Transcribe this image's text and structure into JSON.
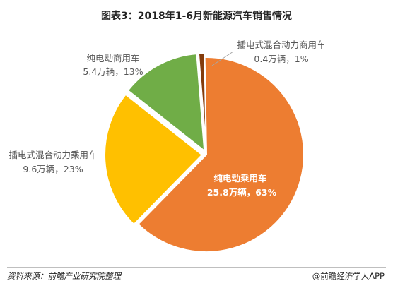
{
  "chart_data": {
    "type": "pie",
    "title": "图表3：2018年1-6月新能源汽车销售情况",
    "slices": [
      {
        "name": "纯电动乘用车",
        "value_label": "25.8万辆，63%",
        "value": 25.8,
        "percent": 63,
        "color": "#ED7D31"
      },
      {
        "name": "插电式混合动力乘用车",
        "value_label": "9.6万辆，23%",
        "value": 9.6,
        "percent": 23,
        "color": "#FFC000"
      },
      {
        "name": "纯电动商用车",
        "value_label": "5.4万辆，13%",
        "value": 5.4,
        "percent": 13,
        "color": "#70AD47"
      },
      {
        "name": "插电式混合动力商用车",
        "value_label": "0.4万辆，1%",
        "value": 0.4,
        "percent": 1,
        "color": "#843C0C"
      }
    ]
  },
  "footer": {
    "source": "资料来源：前瞻产业研究院整理",
    "credit": "@前瞻经济学人APP"
  }
}
